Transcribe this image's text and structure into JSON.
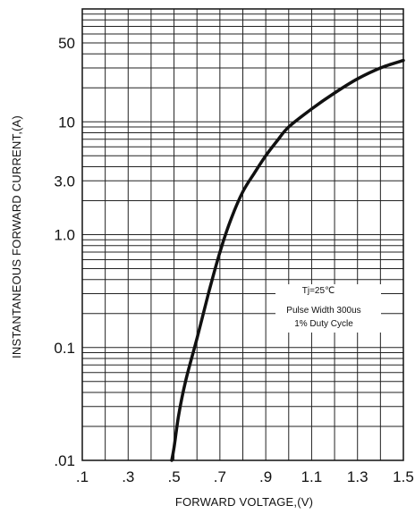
{
  "chart_data": {
    "type": "line",
    "title": "",
    "xlabel": "FORWARD VOLTAGE,(V)",
    "ylabel": "INSTANTANEOUS FORWARD CURRENT,(A)",
    "xscale": "linear",
    "yscale": "log",
    "xlim": [
      0.1,
      1.5
    ],
    "ylim": [
      0.01,
      100
    ],
    "grid": true,
    "x_ticks": [
      0.1,
      0.3,
      0.5,
      0.7,
      0.9,
      1.1,
      1.3,
      1.5
    ],
    "x_tick_labels": [
      ".1",
      ".3",
      ".5",
      ".7",
      ".9",
      "1.1",
      "1.3",
      "1.5"
    ],
    "y_ticks": [
      0.01,
      0.1,
      1.0,
      3.0,
      10,
      50
    ],
    "y_tick_labels": [
      ".01",
      "0.1",
      "1.0",
      "3.0",
      "10",
      "50"
    ],
    "annotation": [
      "Tj=25℃",
      "Pulse Width 300us",
      "1% Duty Cycle"
    ],
    "series": [
      {
        "x": [
          0.49,
          0.5,
          0.52,
          0.55,
          0.6,
          0.65,
          0.7,
          0.75,
          0.8,
          0.85,
          0.9,
          0.95,
          1.0,
          1.1,
          1.2,
          1.3,
          1.4,
          1.5
        ],
        "values": [
          0.01,
          0.013,
          0.025,
          0.05,
          0.12,
          0.3,
          0.7,
          1.4,
          2.4,
          3.5,
          5.0,
          6.8,
          9.0,
          13.0,
          18.0,
          24.0,
          30.0,
          35.0
        ],
        "color": "#111111"
      }
    ]
  }
}
